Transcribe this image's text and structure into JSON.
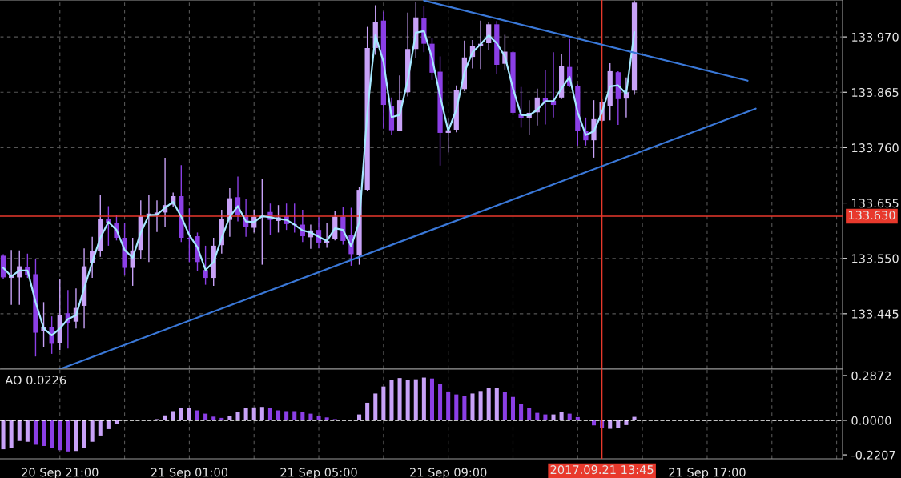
{
  "chart_data": [
    {
      "type": "candlestick",
      "x": [
        "2017-09-20T19:15",
        "2017-09-20T19:30",
        "2017-09-20T19:45",
        "2017-09-20T20:00",
        "2017-09-20T20:15",
        "2017-09-20T20:30",
        "2017-09-20T20:45",
        "2017-09-20T21:00",
        "2017-09-20T21:15",
        "2017-09-20T21:30",
        "2017-09-20T21:45",
        "2017-09-20T22:00",
        "2017-09-20T22:15",
        "2017-09-20T22:30",
        "2017-09-20T22:45",
        "2017-09-20T23:00",
        "2017-09-20T23:15",
        "2017-09-20T23:30",
        "2017-09-20T23:45",
        "2017-09-21T00:00",
        "2017-09-21T00:15",
        "2017-09-21T00:30",
        "2017-09-21T00:45",
        "2017-09-21T01:00",
        "2017-09-21T01:15",
        "2017-09-21T01:30",
        "2017-09-21T01:45",
        "2017-09-21T02:00",
        "2017-09-21T02:15",
        "2017-09-21T02:30",
        "2017-09-21T02:45",
        "2017-09-21T03:00",
        "2017-09-21T03:15",
        "2017-09-21T03:30",
        "2017-09-21T03:45",
        "2017-09-21T04:00",
        "2017-09-21T04:15",
        "2017-09-21T04:30",
        "2017-09-21T04:45",
        "2017-09-21T05:00",
        "2017-09-21T05:15",
        "2017-09-21T05:30",
        "2017-09-21T05:45",
        "2017-09-21T06:00",
        "2017-09-21T06:15",
        "2017-09-21T06:30",
        "2017-09-21T06:45",
        "2017-09-21T07:00",
        "2017-09-21T07:15",
        "2017-09-21T07:30",
        "2017-09-21T07:45",
        "2017-09-21T08:00",
        "2017-09-21T08:15",
        "2017-09-21T08:30",
        "2017-09-21T08:45",
        "2017-09-21T09:00",
        "2017-09-21T09:15",
        "2017-09-21T09:30",
        "2017-09-21T09:45",
        "2017-09-21T10:00",
        "2017-09-21T10:15",
        "2017-09-21T10:30",
        "2017-09-21T10:45",
        "2017-09-21T11:00",
        "2017-09-21T11:15",
        "2017-09-21T11:30",
        "2017-09-21T11:45",
        "2017-09-21T12:00",
        "2017-09-21T12:15",
        "2017-09-21T12:30",
        "2017-09-21T12:45",
        "2017-09-21T13:00",
        "2017-09-21T13:15",
        "2017-09-21T13:30",
        "2017-09-21T13:45",
        "2017-09-21T14:00",
        "2017-09-21T14:15",
        "2017-09-21T14:30",
        "2017-09-21T14:45"
      ],
      "ohlc": [
        [
          133.555,
          133.558,
          133.51,
          133.514
        ],
        [
          133.513,
          133.566,
          133.462,
          133.518
        ],
        [
          133.514,
          133.565,
          133.462,
          133.535
        ],
        [
          133.533,
          133.559,
          133.513,
          133.519
        ],
        [
          133.52,
          133.548,
          133.364,
          133.409
        ],
        [
          133.412,
          133.467,
          133.381,
          133.42
        ],
        [
          133.419,
          133.44,
          133.369,
          133.388
        ],
        [
          133.389,
          133.51,
          133.376,
          133.443
        ],
        [
          133.446,
          133.49,
          133.379,
          133.427
        ],
        [
          133.43,
          133.493,
          133.417,
          133.456
        ],
        [
          133.46,
          133.569,
          133.417,
          133.535
        ],
        [
          133.542,
          133.591,
          133.513,
          133.564
        ],
        [
          133.564,
          133.67,
          133.553,
          133.625
        ],
        [
          133.625,
          133.649,
          133.574,
          133.617
        ],
        [
          133.617,
          133.632,
          133.584,
          133.589
        ],
        [
          133.589,
          133.617,
          133.518,
          133.532
        ],
        [
          133.532,
          133.589,
          133.498,
          133.565
        ],
        [
          133.566,
          133.66,
          133.548,
          133.63
        ],
        [
          133.631,
          133.67,
          133.543,
          133.635
        ],
        [
          133.632,
          133.66,
          133.6,
          133.637
        ],
        [
          133.637,
          133.741,
          133.609,
          133.651
        ],
        [
          133.652,
          133.675,
          133.648,
          133.668
        ],
        [
          133.668,
          133.727,
          133.581,
          133.589
        ],
        [
          133.589,
          133.645,
          133.543,
          133.586
        ],
        [
          133.592,
          133.599,
          133.526,
          133.543
        ],
        [
          133.528,
          133.574,
          133.5,
          133.513
        ],
        [
          133.513,
          133.589,
          133.498,
          133.574
        ],
        [
          133.575,
          133.642,
          133.559,
          133.624
        ],
        [
          133.623,
          133.683,
          133.591,
          133.664
        ],
        [
          133.666,
          133.705,
          133.62,
          133.633
        ],
        [
          133.633,
          133.662,
          133.591,
          133.609
        ],
        [
          133.608,
          133.642,
          133.599,
          133.629
        ],
        [
          133.628,
          133.701,
          133.538,
          133.633
        ],
        [
          133.638,
          133.654,
          133.594,
          133.623
        ],
        [
          133.621,
          133.651,
          133.599,
          133.628
        ],
        [
          133.63,
          133.654,
          133.604,
          133.615
        ],
        [
          133.615,
          133.654,
          133.599,
          133.613
        ],
        [
          133.614,
          133.642,
          133.581,
          133.592
        ],
        [
          133.59,
          133.614,
          133.568,
          133.603
        ],
        [
          133.604,
          133.628,
          133.569,
          133.58
        ],
        [
          133.579,
          133.617,
          133.57,
          133.583
        ],
        [
          133.586,
          133.64,
          133.584,
          133.629
        ],
        [
          133.629,
          133.647,
          133.576,
          133.583
        ],
        [
          133.594,
          133.646,
          133.536,
          133.558
        ],
        [
          133.556,
          133.685,
          133.538,
          133.68
        ],
        [
          133.68,
          133.989,
          133.678,
          133.949
        ],
        [
          133.949,
          134.03,
          133.936,
          133.999
        ],
        [
          134.001,
          134.018,
          133.796,
          133.841
        ],
        [
          133.838,
          133.855,
          133.784,
          133.793
        ],
        [
          133.792,
          133.897,
          133.791,
          133.85
        ],
        [
          133.865,
          134.016,
          133.857,
          133.947
        ],
        [
          133.947,
          134.037,
          133.93,
          134.007
        ],
        [
          134.005,
          134.029,
          133.941,
          133.957
        ],
        [
          133.957,
          133.968,
          133.888,
          133.902
        ],
        [
          133.904,
          133.933,
          133.726,
          133.788
        ],
        [
          133.788,
          133.815,
          133.751,
          133.793
        ],
        [
          133.794,
          133.878,
          133.789,
          133.869
        ],
        [
          133.871,
          133.963,
          133.867,
          133.931
        ],
        [
          133.932,
          133.964,
          133.91,
          133.952
        ],
        [
          133.952,
          134.001,
          133.909,
          133.957
        ],
        [
          133.958,
          133.999,
          133.946,
          133.994
        ],
        [
          133.994,
          134.0,
          133.9,
          133.917
        ],
        [
          133.919,
          133.974,
          133.908,
          133.942
        ],
        [
          133.941,
          133.943,
          133.822,
          133.826
        ],
        [
          133.823,
          133.875,
          133.798,
          133.816
        ],
        [
          133.816,
          133.85,
          133.784,
          133.826
        ],
        [
          133.827,
          133.872,
          133.802,
          133.855
        ],
        [
          133.854,
          133.907,
          133.804,
          133.847
        ],
        [
          133.849,
          133.941,
          133.817,
          133.841
        ],
        [
          133.855,
          133.938,
          133.852,
          133.914
        ],
        [
          133.913,
          133.966,
          133.875,
          133.877
        ],
        [
          133.877,
          133.88,
          133.764,
          133.792
        ],
        [
          133.791,
          133.817,
          133.764,
          133.774
        ],
        [
          133.774,
          133.85,
          133.741,
          133.814
        ],
        [
          133.811,
          133.852,
          133.809,
          133.847
        ],
        [
          133.839,
          133.92,
          133.812,
          133.905
        ],
        [
          133.903,
          133.905,
          133.803,
          133.852
        ],
        [
          133.853,
          133.893,
          133.817,
          133.865
        ],
        [
          133.868,
          134.039,
          133.86,
          134.035
        ]
      ],
      "colors": [
        "#8b3fe6",
        "#c8a2f8",
        "#c8a2f8",
        "#8b3fe6",
        "#8b3fe6",
        "#c8a2f8",
        "#8b3fe6",
        "#c8a2f8",
        "#8b3fe6",
        "#c8a2f8",
        "#c8a2f8",
        "#c8a2f8",
        "#c8a2f8",
        "#8b3fe6",
        "#8b3fe6",
        "#8b3fe6",
        "#c8a2f8",
        "#c8a2f8",
        "#c8a2f8",
        "#c8a2f8",
        "#c8a2f8",
        "#c8a2f8",
        "#8b3fe6",
        "#8b3fe6",
        "#8b3fe6",
        "#8b3fe6",
        "#c8a2f8",
        "#c8a2f8",
        "#c8a2f8",
        "#8b3fe6",
        "#8b3fe6",
        "#c8a2f8",
        "#c8a2f8",
        "#8b3fe6",
        "#c8a2f8",
        "#8b3fe6",
        "#8b3fe6",
        "#8b3fe6",
        "#c8a2f8",
        "#8b3fe6",
        "#c8a2f8",
        "#c8a2f8",
        "#8b3fe6",
        "#8b3fe6",
        "#c8a2f8",
        "#c8a2f8",
        "#c8a2f8",
        "#8b3fe6",
        "#8b3fe6",
        "#c8a2f8",
        "#c8a2f8",
        "#c8a2f8",
        "#8b3fe6",
        "#8b3fe6",
        "#8b3fe6",
        "#c8a2f8",
        "#c8a2f8",
        "#c8a2f8",
        "#c8a2f8",
        "#c8a2f8",
        "#c8a2f8",
        "#8b3fe6",
        "#c8a2f8",
        "#8b3fe6",
        "#8b3fe6",
        "#c8a2f8",
        "#c8a2f8",
        "#8b3fe6",
        "#8b3fe6",
        "#c8a2f8",
        "#8b3fe6",
        "#8b3fe6",
        "#8b3fe6",
        "#c8a2f8",
        "#c8a2f8",
        "#c8a2f8",
        "#8b3fe6",
        "#c8a2f8",
        "#c8a2f8"
      ],
      "series": [
        {
          "type": "line",
          "color": "#a6e8ff",
          "values": [
            133.532,
            133.516,
            133.527,
            133.527,
            133.467,
            133.417,
            133.404,
            133.417,
            133.435,
            133.442,
            133.493,
            133.543,
            133.589,
            133.619,
            133.604,
            133.566,
            133.551,
            133.599,
            133.632,
            133.633,
            133.646,
            133.657,
            133.629,
            133.594,
            133.571,
            133.528,
            133.543,
            133.589,
            133.629,
            133.649,
            133.62,
            133.619,
            133.63,
            133.628,
            133.625,
            133.623,
            133.614,
            133.603,
            133.599,
            133.591,
            133.583,
            133.607,
            133.604,
            133.573,
            133.619,
            133.827,
            133.973,
            133.923,
            133.818,
            133.822,
            133.888,
            133.978,
            133.981,
            133.93,
            133.857,
            133.792,
            133.832,
            133.903,
            133.941,
            133.956,
            133.973,
            133.958,
            133.933,
            133.872,
            133.822,
            133.821,
            133.832,
            133.848,
            133.848,
            133.872,
            133.894,
            133.827,
            133.784,
            133.791,
            133.827,
            133.876,
            133.878,
            133.862,
            133.979
          ]
        },
        {
          "type": "line",
          "color": "#3a78d8",
          "x": [
            "2017-09-20T21:00",
            "2017-09-21T18:30"
          ],
          "values": [
            133.34,
            133.834
          ]
        },
        {
          "type": "line",
          "color": "#3a78d8",
          "x": [
            "2017-09-21T08:15",
            "2017-09-21T18:15"
          ],
          "values": [
            134.039,
            133.887
          ]
        }
      ],
      "ref_lines": [
        {
          "axis": "y",
          "value": 133.63,
          "label": "133.630",
          "color": "#e8392c"
        },
        {
          "axis": "x",
          "value": "2017-09-21T13:45",
          "color": "#e8392c"
        }
      ],
      "xlim": [
        "2017-09-20T19:09",
        "2017-09-21T21:11"
      ],
      "xticks": [
        {
          "value": "2017-09-20T21:00",
          "label": null
        },
        {
          "value": "2017-09-20T23:00",
          "label": null
        },
        {
          "value": "2017-09-21T01:00",
          "label": null
        },
        {
          "value": "2017-09-21T03:00",
          "label": null
        },
        {
          "value": "2017-09-21T05:00",
          "label": null
        },
        {
          "value": "2017-09-21T07:00",
          "label": null
        },
        {
          "value": "2017-09-21T09:00",
          "label": null
        },
        {
          "value": "2017-09-21T11:00",
          "label": null
        },
        {
          "value": "2017-09-21T13:00",
          "label": null
        },
        {
          "value": "2017-09-21T15:00",
          "label": null
        },
        {
          "value": "2017-09-21T17:00",
          "label": null
        },
        {
          "value": "2017-09-21T19:00",
          "label": null
        },
        {
          "value": "2017-09-21T21:00",
          "label": null
        }
      ],
      "ylim": [
        133.34,
        134.04
      ],
      "yticks": [
        133.445,
        {
          "value": 133.55,
          "label": "133.550"
        },
        133.655,
        {
          "value": 133.76,
          "label": "133.760"
        },
        133.865,
        {
          "value": 133.97,
          "label": "133.970"
        }
      ],
      "grid": true,
      "tick_labels": "y"
    },
    {
      "type": "bar",
      "title": "AO 0.0226",
      "x": [
        "2017-09-20T19:15",
        "2017-09-20T19:30",
        "2017-09-20T19:45",
        "2017-09-20T20:00",
        "2017-09-20T20:15",
        "2017-09-20T20:30",
        "2017-09-20T20:45",
        "2017-09-20T21:00",
        "2017-09-20T21:15",
        "2017-09-20T21:30",
        "2017-09-20T21:45",
        "2017-09-20T22:00",
        "2017-09-20T22:15",
        "2017-09-20T22:30",
        "2017-09-20T22:45",
        "2017-09-20T23:00",
        "2017-09-20T23:15",
        "2017-09-20T23:30",
        "2017-09-20T23:45",
        "2017-09-21T00:00",
        "2017-09-21T00:15",
        "2017-09-21T00:30",
        "2017-09-21T00:45",
        "2017-09-21T01:00",
        "2017-09-21T01:15",
        "2017-09-21T01:30",
        "2017-09-21T01:45",
        "2017-09-21T02:00",
        "2017-09-21T02:15",
        "2017-09-21T02:30",
        "2017-09-21T02:45",
        "2017-09-21T03:00",
        "2017-09-21T03:15",
        "2017-09-21T03:30",
        "2017-09-21T03:45",
        "2017-09-21T04:00",
        "2017-09-21T04:15",
        "2017-09-21T04:30",
        "2017-09-21T04:45",
        "2017-09-21T05:00",
        "2017-09-21T05:15",
        "2017-09-21T05:30",
        "2017-09-21T05:45",
        "2017-09-21T06:00",
        "2017-09-21T06:15",
        "2017-09-21T06:30",
        "2017-09-21T06:45",
        "2017-09-21T07:00",
        "2017-09-21T07:15",
        "2017-09-21T07:30",
        "2017-09-21T07:45",
        "2017-09-21T08:00",
        "2017-09-21T08:15",
        "2017-09-21T08:30",
        "2017-09-21T08:45",
        "2017-09-21T09:00",
        "2017-09-21T09:15",
        "2017-09-21T09:30",
        "2017-09-21T09:45",
        "2017-09-21T10:00",
        "2017-09-21T10:15",
        "2017-09-21T10:30",
        "2017-09-21T10:45",
        "2017-09-21T11:00",
        "2017-09-21T11:15",
        "2017-09-21T11:30",
        "2017-09-21T11:45",
        "2017-09-21T12:00",
        "2017-09-21T12:15",
        "2017-09-21T12:30",
        "2017-09-21T12:45",
        "2017-09-21T13:00",
        "2017-09-21T13:15",
        "2017-09-21T13:30",
        "2017-09-21T13:45",
        "2017-09-21T14:00",
        "2017-09-21T14:15",
        "2017-09-21T14:30",
        "2017-09-21T14:45"
      ],
      "values": [
        -0.185,
        -0.177,
        -0.132,
        -0.137,
        -0.156,
        -0.164,
        -0.177,
        -0.191,
        -0.199,
        -0.196,
        -0.177,
        -0.137,
        -0.097,
        -0.056,
        -0.021,
        0,
        0,
        0,
        0,
        0.008,
        0.032,
        0.059,
        0.081,
        0.081,
        0.064,
        0.043,
        0.024,
        0.016,
        0.027,
        0.056,
        0.078,
        0.083,
        0.086,
        0.081,
        0.064,
        0.059,
        0.059,
        0.054,
        0.043,
        0.027,
        0.019,
        0.008,
        0,
        0,
        0.038,
        0.113,
        0.172,
        0.217,
        0.26,
        0.271,
        0.26,
        0.263,
        0.274,
        0.268,
        0.231,
        0.185,
        0.166,
        0.156,
        0.172,
        0.188,
        0.207,
        0.207,
        0.183,
        0.15,
        0.107,
        0.078,
        0.048,
        0.038,
        0.038,
        0.054,
        0.043,
        0.021,
        0,
        -0.032,
        -0.051,
        -0.054,
        -0.048,
        -0.03,
        0.0226
      ],
      "colors": [
        "#c8a2f8",
        "#c8a2f8",
        "#c8a2f8",
        "#c8a2f8",
        "#8b3fe6",
        "#8b3fe6",
        "#8b3fe6",
        "#8b3fe6",
        "#8b3fe6",
        "#c8a2f8",
        "#c8a2f8",
        "#c8a2f8",
        "#c8a2f8",
        "#c8a2f8",
        "#c8a2f8",
        "#c8a2f8",
        "#c8a2f8",
        "#c8a2f8",
        "#c8a2f8",
        "#c8a2f8",
        "#c8a2f8",
        "#c8a2f8",
        "#c8a2f8",
        "#c8a2f8",
        "#8b3fe6",
        "#8b3fe6",
        "#8b3fe6",
        "#8b3fe6",
        "#c8a2f8",
        "#c8a2f8",
        "#c8a2f8",
        "#c8a2f8",
        "#c8a2f8",
        "#8b3fe6",
        "#8b3fe6",
        "#8b3fe6",
        "#8b3fe6",
        "#8b3fe6",
        "#8b3fe6",
        "#8b3fe6",
        "#8b3fe6",
        "#8b3fe6",
        "#8b3fe6",
        "#8b3fe6",
        "#c8a2f8",
        "#c8a2f8",
        "#c8a2f8",
        "#c8a2f8",
        "#c8a2f8",
        "#c8a2f8",
        "#c8a2f8",
        "#c8a2f8",
        "#c8a2f8",
        "#8b3fe6",
        "#8b3fe6",
        "#8b3fe6",
        "#8b3fe6",
        "#8b3fe6",
        "#c8a2f8",
        "#c8a2f8",
        "#c8a2f8",
        "#c8a2f8",
        "#8b3fe6",
        "#8b3fe6",
        "#8b3fe6",
        "#8b3fe6",
        "#8b3fe6",
        "#8b3fe6",
        "#c8a2f8",
        "#c8a2f8",
        "#8b3fe6",
        "#8b3fe6",
        "#8b3fe6",
        "#8b3fe6",
        "#8b3fe6",
        "#c8a2f8",
        "#c8a2f8",
        "#c8a2f8",
        "#c8a2f8"
      ],
      "ref_lines": [
        {
          "axis": "y",
          "value": 0,
          "color": "#ffffff",
          "line_style": "dashed"
        },
        {
          "axis": "x",
          "value": "2017-09-21T13:45",
          "label": "2017.09.21 13:45",
          "color": "#e8392c"
        }
      ],
      "xlim": [
        "2017-09-20T19:09",
        "2017-09-21T21:11"
      ],
      "xticks": [
        {
          "value": "2017-09-20T21:00",
          "label": "20 Sep 21:00"
        },
        {
          "value": "2017-09-20T23:00",
          "label": null
        },
        {
          "value": "2017-09-21T01:00",
          "label": "21 Sep 01:00"
        },
        {
          "value": "2017-09-21T03:00",
          "label": null
        },
        {
          "value": "2017-09-21T05:00",
          "label": "21 Sep 05:00"
        },
        {
          "value": "2017-09-21T07:00",
          "label": null
        },
        {
          "value": "2017-09-21T09:00",
          "label": "21 Sep 09:00"
        },
        {
          "value": "2017-09-21T11:00",
          "label": null
        },
        {
          "value": "2017-09-21T13:00",
          "label": null
        },
        {
          "value": "2017-09-21T15:00",
          "label": null
        },
        {
          "value": "2017-09-21T17:00",
          "label": "21 Sep 17:00"
        },
        {
          "value": "2017-09-21T19:00",
          "label": null
        },
        {
          "value": "2017-09-21T21:00",
          "label": null
        }
      ],
      "ylim": [
        -0.246,
        0.328
      ],
      "yticks": [
        {
          "value": -0.2207,
          "label": "-0.2207"
        },
        {
          "value": 0,
          "label": "0.0000"
        },
        {
          "value": 0.2872,
          "label": "0.2872"
        }
      ],
      "grid": "x"
    }
  ]
}
